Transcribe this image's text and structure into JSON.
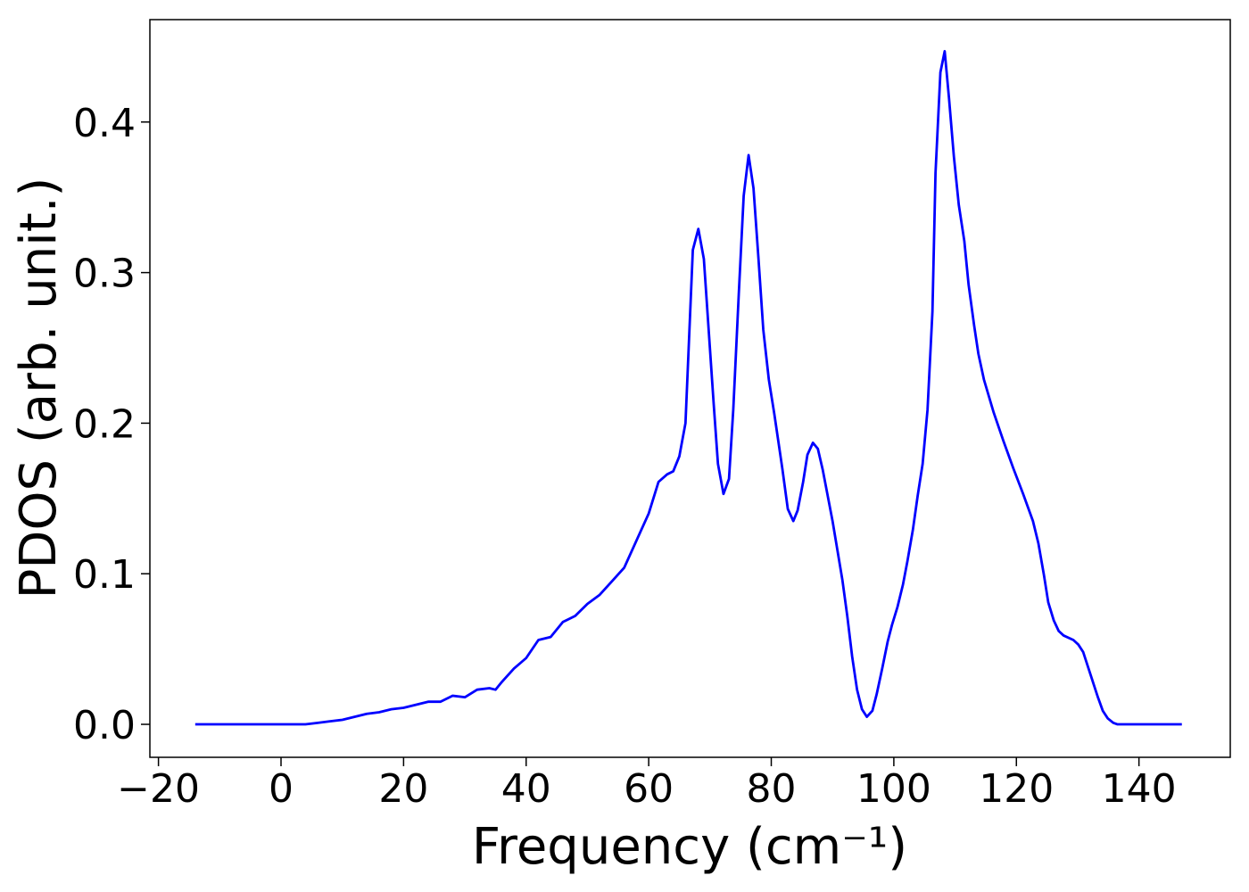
{
  "chart_data": {
    "type": "line",
    "xlabel": "Frequency (cm⁻¹)",
    "ylabel": "PDOS (arb. unit.)",
    "color": "#0000ff",
    "x": [
      -14,
      -10,
      -6,
      -2,
      2,
      4,
      6,
      8,
      10,
      12,
      14,
      16,
      18,
      20,
      22,
      24,
      26,
      28,
      30,
      32,
      34,
      35,
      36,
      38,
      40,
      42,
      44,
      46,
      48,
      50,
      52,
      54,
      56,
      58,
      60,
      61.6,
      63,
      64,
      65,
      66,
      67.2,
      68.1,
      69.0,
      70.6,
      71.3,
      72.2,
      73.1,
      73.8,
      74.7,
      75.5,
      76.3,
      77.1,
      77.9,
      78.7,
      79.6,
      80.5,
      81.8,
      82.7,
      83.6,
      84.3,
      85.2,
      85.9,
      86.8,
      87.6,
      88.4,
      90.0,
      91.6,
      92.4,
      93.2,
      94.0,
      94.8,
      95.6,
      96.5,
      97.2,
      98.1,
      99.0,
      99.7,
      100.6,
      101.5,
      102.2,
      103.1,
      103.9,
      104.7,
      105.5,
      106.3,
      106.8,
      107.6,
      108.3,
      109.0,
      109.8,
      110.6,
      111.5,
      112.2,
      113.1,
      113.8,
      114.7,
      116.3,
      117.9,
      119.5,
      121.1,
      122.7,
      123.6,
      124.5,
      125.2,
      126.1,
      126.9,
      127.7,
      129.3,
      130.1,
      130.9,
      131.7,
      132.5,
      133.3,
      134.1,
      134.9,
      135.8,
      136.5,
      140,
      144,
      147
    ],
    "values": [
      0,
      0,
      0,
      0,
      0,
      0,
      0.001,
      0.002,
      0.003,
      0.005,
      0.007,
      0.008,
      0.01,
      0.011,
      0.013,
      0.015,
      0.015,
      0.019,
      0.018,
      0.023,
      0.024,
      0.023,
      0.028,
      0.037,
      0.044,
      0.056,
      0.058,
      0.068,
      0.072,
      0.08,
      0.086,
      0.095,
      0.104,
      0.122,
      0.14,
      0.161,
      0.166,
      0.168,
      0.178,
      0.2,
      0.315,
      0.329,
      0.309,
      0.213,
      0.173,
      0.153,
      0.163,
      0.209,
      0.286,
      0.351,
      0.378,
      0.356,
      0.31,
      0.262,
      0.229,
      0.206,
      0.17,
      0.143,
      0.135,
      0.142,
      0.161,
      0.179,
      0.187,
      0.183,
      0.169,
      0.135,
      0.096,
      0.072,
      0.045,
      0.023,
      0.01,
      0.005,
      0.009,
      0.02,
      0.037,
      0.055,
      0.066,
      0.078,
      0.093,
      0.108,
      0.129,
      0.152,
      0.173,
      0.209,
      0.274,
      0.366,
      0.433,
      0.447,
      0.416,
      0.377,
      0.345,
      0.321,
      0.292,
      0.265,
      0.246,
      0.229,
      0.207,
      0.188,
      0.17,
      0.153,
      0.135,
      0.12,
      0.099,
      0.081,
      0.069,
      0.062,
      0.059,
      0.056,
      0.053,
      0.048,
      0.038,
      0.028,
      0.018,
      0.009,
      0.004,
      0.001,
      0,
      0,
      0,
      0
    ],
    "xlim": [
      -21.4,
      154.9
    ],
    "ylim": [
      -0.0219,
      0.468
    ],
    "xticks": [
      {
        "value": -20,
        "label": "−20"
      },
      0,
      20,
      40,
      60,
      80,
      100,
      120,
      140
    ],
    "yticks": [
      {
        "value": 0,
        "label": "0.0"
      },
      0.1,
      0.2,
      0.3,
      0.4
    ]
  }
}
